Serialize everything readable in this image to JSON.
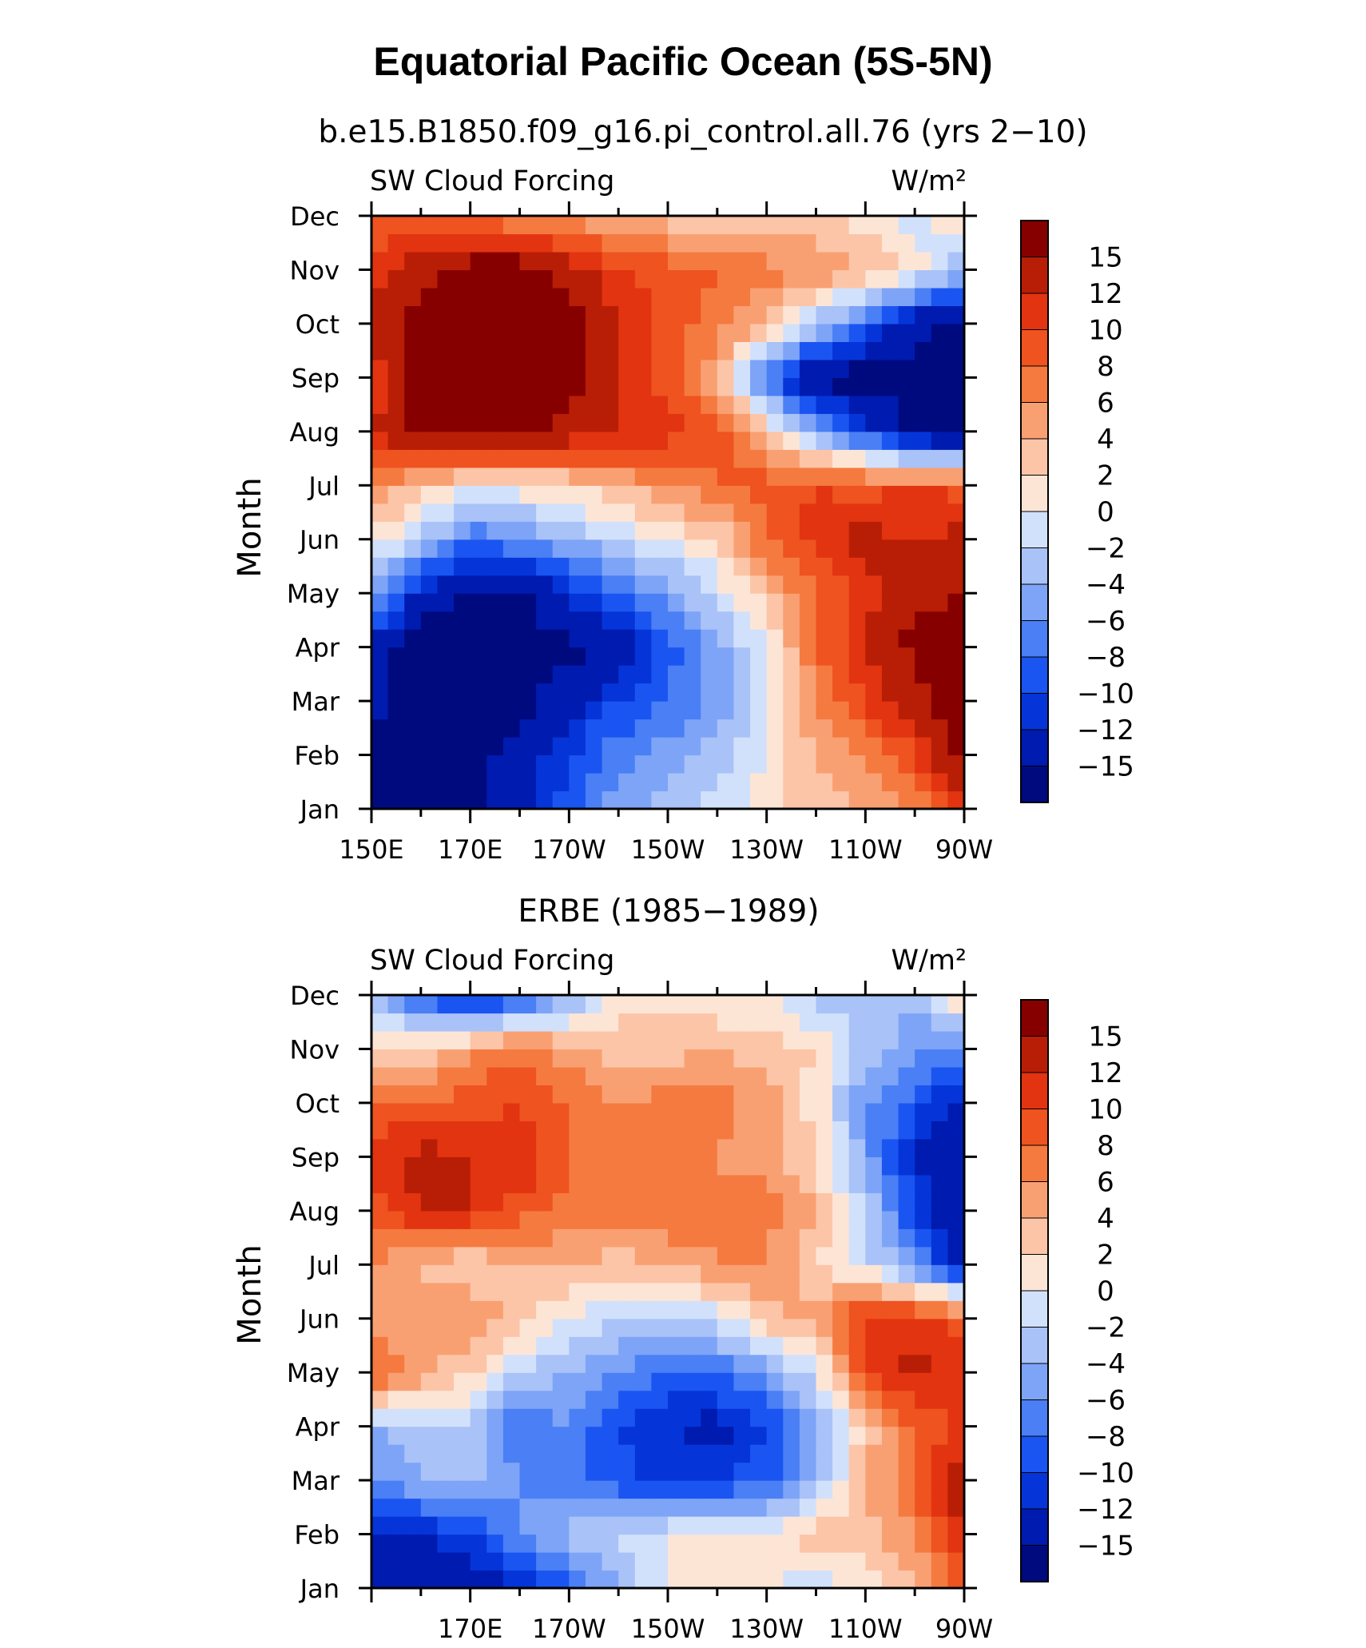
{
  "figure": {
    "title": "Equatorial Pacific Ocean (5S-5N)"
  },
  "palette": {
    "levels": [
      -15,
      -12,
      -10,
      -8,
      -6,
      -4,
      -2,
      0,
      2,
      4,
      6,
      8,
      10,
      12,
      15
    ],
    "colors": [
      "#000a7f",
      "#001bb0",
      "#0535d8",
      "#1a55f2",
      "#4a7ff5",
      "#7ea4f7",
      "#a9c2f8",
      "#d2e1fb",
      "#fde5d6",
      "#fcc5a7",
      "#f9a073",
      "#f57a40",
      "#ee5320",
      "#e23410",
      "#b81e06",
      "#870000"
    ]
  },
  "chart_data": [
    {
      "type": "heatmap",
      "subtitle": "b.e15.B1850.f09_g16.pi_control.all.76 (yrs 2−10)",
      "left_label": "SW Cloud Forcing",
      "right_label": "W/m²",
      "ylabel": "Month",
      "x_tick_labels": [
        "150E",
        "170E",
        "170W",
        "150W",
        "130W",
        "110W",
        "90W"
      ],
      "x_range": [
        150,
        270
      ],
      "y_tick_labels": [
        "Jan",
        "Feb",
        "Mar",
        "Apr",
        "May",
        "Jun",
        "Jul",
        "Aug",
        "Sep",
        "Oct",
        "Nov",
        "Dec"
      ],
      "colorbar_labels": [
        "15",
        "12",
        "10",
        "8",
        "6",
        "4",
        "2",
        "0",
        "−2",
        "−4",
        "−6",
        "−8",
        "−10",
        "−12",
        "−15"
      ],
      "x": [
        150,
        160,
        170,
        180,
        190,
        200,
        210,
        220,
        230,
        240,
        250,
        260,
        270
      ],
      "months": [
        "Jan",
        "Feb",
        "Mar",
        "Apr",
        "May",
        "Jun",
        "Jul",
        "Aug",
        "Sep",
        "Oct",
        "Nov",
        "Dec"
      ],
      "values": [
        [
          -16,
          -16,
          -16,
          -13,
          -9,
          -5,
          -3,
          -1,
          1,
          3,
          4,
          6,
          10
        ],
        [
          -16,
          -16,
          -16,
          -14,
          -10,
          -7,
          -5,
          -3,
          0,
          4,
          6,
          10,
          16
        ],
        [
          -14,
          -17,
          -16,
          -16,
          -13,
          -10,
          -8,
          -5,
          -1,
          6,
          10,
          14,
          17
        ],
        [
          -13,
          -17,
          -17,
          -17,
          -16,
          -14,
          -9,
          -5,
          0,
          8,
          12,
          16,
          17
        ],
        [
          -5,
          -13,
          -15,
          -16,
          -11,
          -8,
          -5,
          -1,
          3,
          8,
          11,
          14,
          15
        ],
        [
          1,
          -2,
          -8,
          -6,
          -4,
          -2,
          0,
          2,
          8,
          11,
          13,
          12,
          13
        ],
        [
          6,
          3,
          1,
          1,
          2,
          4,
          6,
          8,
          9,
          10,
          9,
          10,
          9
        ],
        [
          12,
          16,
          17,
          17,
          14,
          12,
          11,
          9,
          3,
          -5,
          -10,
          -16,
          -17
        ],
        [
          10,
          17,
          17,
          17,
          17,
          12,
          9,
          4,
          -8,
          -16,
          -17,
          -17,
          -17
        ],
        [
          13,
          17,
          17,
          17,
          16,
          12,
          9,
          7,
          4,
          -3,
          -8,
          -14,
          -17
        ],
        [
          10,
          14,
          17,
          17,
          14,
          10,
          9,
          8,
          7,
          6,
          4,
          1,
          -4
        ],
        [
          8,
          8,
          7,
          6,
          5,
          4,
          3,
          2,
          1,
          2,
          1,
          -1,
          2
        ]
      ]
    },
    {
      "type": "heatmap",
      "subtitle": "ERBE (1985−1989)",
      "left_label": "SW Cloud Forcing",
      "right_label": "W/m²",
      "ylabel": "Month",
      "x_tick_labels": [
        "170E",
        "170W",
        "150W",
        "130W",
        "110W",
        "90W"
      ],
      "x_range": [
        150,
        270
      ],
      "y_tick_labels": [
        "Jan",
        "Feb",
        "Mar",
        "Apr",
        "May",
        "Jun",
        "Jul",
        "Aug",
        "Sep",
        "Oct",
        "Nov",
        "Dec"
      ],
      "colorbar_labels": [
        "15",
        "12",
        "10",
        "8",
        "6",
        "4",
        "2",
        "0",
        "−2",
        "−4",
        "−6",
        "−8",
        "−10",
        "−12",
        "−15"
      ],
      "x": [
        150,
        160,
        170,
        180,
        190,
        200,
        210,
        220,
        230,
        240,
        250,
        260,
        270
      ],
      "months": [
        "Jan",
        "Feb",
        "Mar",
        "Apr",
        "May",
        "Jun",
        "Jul",
        "Aug",
        "Sep",
        "Oct",
        "Nov",
        "Dec"
      ],
      "values": [
        [
          -13,
          -14,
          -14,
          -12,
          -9,
          -4,
          0,
          1,
          0,
          -1,
          1,
          3,
          10
        ],
        [
          -13,
          -12,
          -10,
          -6,
          -3,
          -2,
          0,
          1,
          1,
          3,
          3,
          6,
          12
        ],
        [
          -6,
          -4,
          -3,
          -6,
          -8,
          -9,
          -11,
          -10,
          -9,
          -4,
          4,
          8,
          14
        ],
        [
          -4,
          -3,
          -2,
          -8,
          -6,
          -10,
          -12,
          -13,
          -10,
          -5,
          3,
          8,
          11
        ],
        [
          9,
          5,
          2,
          -2,
          -4,
          -6,
          -8,
          -8,
          -5,
          -1,
          10,
          13,
          11
        ],
        [
          5,
          4,
          6,
          3,
          0,
          -2,
          -3,
          -1,
          3,
          5,
          11,
          11,
          9
        ],
        [
          6,
          4,
          2,
          4,
          4,
          3,
          4,
          6,
          6,
          2,
          -1,
          -6,
          -14
        ],
        [
          9,
          12,
          12,
          9,
          7,
          8,
          8,
          6,
          7,
          4,
          -2,
          -10,
          -15
        ],
        [
          11,
          13,
          12,
          12,
          8,
          8,
          6,
          6,
          5,
          2,
          -5,
          -12,
          -15
        ],
        [
          8,
          8,
          9,
          10,
          8,
          6,
          7,
          7,
          5,
          1,
          -6,
          -9,
          -13
        ],
        [
          1,
          2,
          5,
          8,
          5,
          3,
          3,
          4,
          3,
          2,
          -3,
          -5,
          -7
        ],
        [
          -2,
          -9,
          -12,
          -10,
          -5,
          1,
          1,
          0,
          0,
          -3,
          -3,
          -4,
          3
        ]
      ]
    }
  ]
}
